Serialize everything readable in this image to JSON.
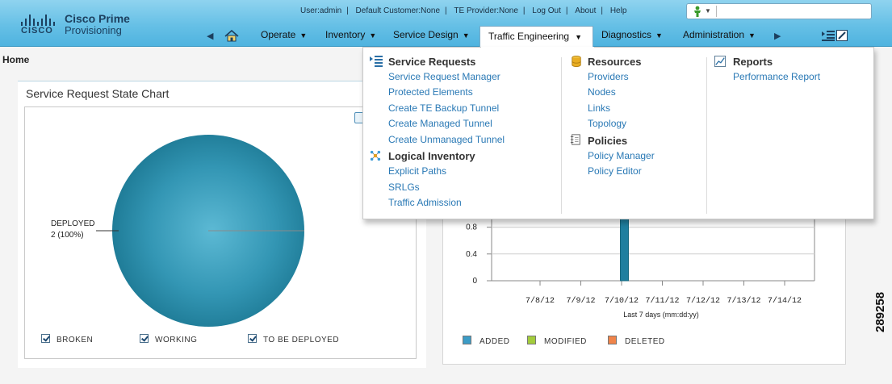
{
  "header": {
    "brand_line1": "Cisco Prime",
    "brand_line2": "Provisioning",
    "cisco_word": "CISCO",
    "user": "User:admin",
    "customer": "Default Customer:None",
    "te_provider": "TE Provider:None",
    "logout": "Log Out",
    "about": "About",
    "help": "Help",
    "separator": "|",
    "search_placeholder": ""
  },
  "nav": {
    "items": [
      {
        "label": "Operate"
      },
      {
        "label": "Inventory"
      },
      {
        "label": "Service Design"
      },
      {
        "label": "Traffic Engineering"
      },
      {
        "label": "Diagnostics"
      },
      {
        "label": "Administration"
      }
    ],
    "dropdown_glyph": "▼",
    "left_arrow": "◀",
    "right_arrow": "▶"
  },
  "breadcrumb": {
    "home": "Home"
  },
  "te_menu": {
    "service_requests": {
      "title": "Service Requests",
      "links": [
        "Service Request Manager",
        "Protected Elements",
        "Create TE Backup Tunnel",
        "Create Managed Tunnel",
        "Create Unmanaged Tunnel"
      ]
    },
    "logical_inventory": {
      "title": "Logical Inventory",
      "links": [
        "Explicit Paths",
        "SRLGs",
        "Traffic Admission"
      ]
    },
    "resources": {
      "title": "Resources",
      "links": [
        "Providers",
        "Nodes",
        "Links",
        "Topology"
      ]
    },
    "policies": {
      "title": "Policies",
      "links": [
        "Policy Manager",
        "Policy Editor"
      ]
    },
    "reports": {
      "title": "Reports",
      "links": [
        "Performance Report"
      ]
    }
  },
  "left_panel": {
    "title": "Service Request State Chart",
    "legend": [
      "BROKEN",
      "WORKING",
      "TO BE DEPLOYED"
    ]
  },
  "right_panel": {
    "legend": [
      "ADDED",
      "MODIFIED",
      "DELETED"
    ],
    "legend_colors": [
      "#3c9cc6",
      "#a3cc3c",
      "#f0844a"
    ]
  },
  "chart_data": [
    {
      "type": "pie",
      "title": "Service Request State Chart",
      "slices": [
        {
          "label": "DEPLOYED",
          "value": 2,
          "percent": 100,
          "display": "2 (100%)"
        }
      ],
      "legend": [
        "BROKEN",
        "WORKING",
        "TO BE DEPLOYED"
      ]
    },
    {
      "type": "bar",
      "categories": [
        "7/8/12",
        "7/9/12",
        "7/10/12",
        "7/11/12",
        "7/12/12",
        "7/13/12",
        "7/14/12"
      ],
      "series": [
        {
          "name": "ADDED",
          "values": [
            0,
            0,
            1,
            0,
            0,
            0,
            0
          ]
        },
        {
          "name": "MODIFIED",
          "values": [
            0,
            0,
            0,
            0,
            0,
            0,
            0
          ]
        },
        {
          "name": "DELETED",
          "values": [
            0,
            0,
            0,
            0,
            0,
            0,
            0
          ]
        }
      ],
      "yticks": [
        "0",
        "0.4",
        "0.8"
      ],
      "ylim": [
        0,
        1.2
      ],
      "xlabel": "Last 7 days (mm:dd:yy)"
    }
  ],
  "side_number": "289258"
}
